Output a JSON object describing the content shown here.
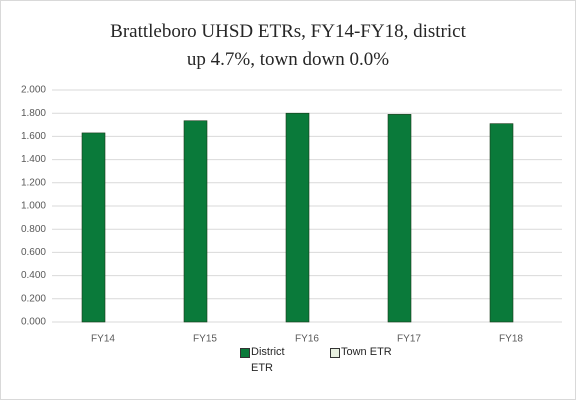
{
  "chart_data": {
    "type": "bar",
    "title": "Brattleboro UHSD  ETRs, FY14-FY18, district up 4.7%, town down 0.0%",
    "categories": [
      "FY14",
      "FY15",
      "FY16",
      "FY17",
      "FY18"
    ],
    "series": [
      {
        "name": "District ETR",
        "color": "#0a7a3a",
        "values": [
          1.63,
          1.735,
          1.8,
          1.79,
          1.71
        ]
      },
      {
        "name": "Town ETR",
        "color": "#e8f0e0",
        "values": [
          0,
          0,
          0,
          0,
          0
        ]
      }
    ],
    "ylim": [
      0,
      2
    ],
    "yticks": [
      {
        "value": 0,
        "label": "0.000"
      },
      {
        "value": 0.2,
        "label": "0.200"
      },
      {
        "value": 0.4,
        "label": "0.400"
      },
      {
        "value": 0.6,
        "label": "0.600"
      },
      {
        "value": 0.8,
        "label": "0.800"
      },
      {
        "value": 1,
        "label": "1.000"
      },
      {
        "value": 1.2,
        "label": "1.200"
      },
      {
        "value": 1.4,
        "label": "1.400"
      },
      {
        "value": 1.6,
        "label": "1.600"
      },
      {
        "value": 1.8,
        "label": "1.800"
      },
      {
        "value": 2,
        "label": "2.000"
      }
    ],
    "grid": true,
    "legend": "bottom"
  }
}
